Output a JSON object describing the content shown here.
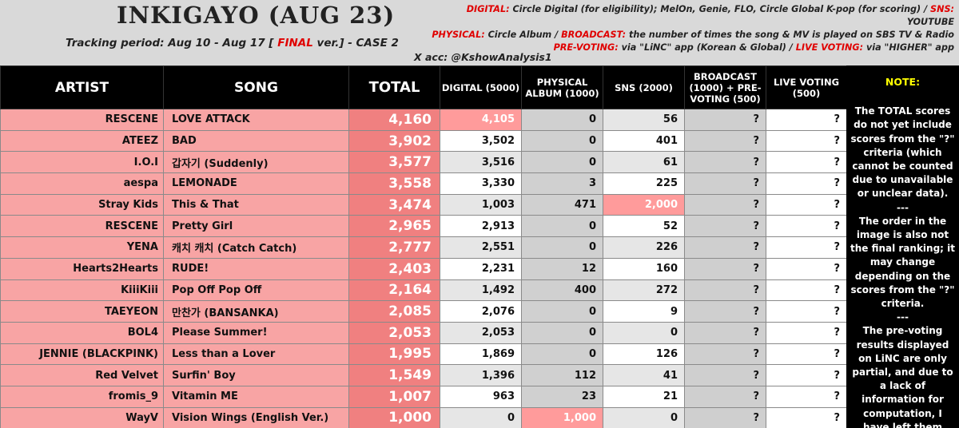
{
  "header": {
    "title": "INKIGAYO (AUG 23)",
    "tracking_prefix": "Tracking period: Aug 10 - Aug 17 [ ",
    "tracking_final": "FINAL",
    "tracking_suffix": " ver.] - CASE 2",
    "x_account": "X acc: @KshowAnalysis1",
    "info": [
      {
        "key": "DIGITAL:",
        "text": " Circle Digital (for eligibility); MelOn, Genie, FLO, Circle Global K-pop (for scoring) / ",
        "key2": "SNS:",
        "text2": " YOUTUBE"
      },
      {
        "key": "PHYSICAL:",
        "text": " Circle Album / ",
        "key2": "BROADCAST:",
        "text2": " the number of times the song & MV is played on SBS TV & Radio"
      },
      {
        "key": "PRE-VOTING:",
        "text": " via \"LiNC\" app (Korean & Global) / ",
        "key2": "LIVE VOTING:",
        "text2": " via \"HIGHER\" app"
      }
    ]
  },
  "columns": {
    "artist": "ARTIST",
    "song": "SONG",
    "total": "TOTAL",
    "digital": "DIGITAL (5000)",
    "physical": "PHYSICAL ALBUM (1000)",
    "sns": "SNS (2000)",
    "broadcast": "BROADCAST (1000) + PRE-VOTING (500)",
    "live": "LIVE VOTING (500)"
  },
  "rows": [
    {
      "artist": "RESCENE",
      "song": "LOVE ATTACK",
      "total": "4,160",
      "digital": "4,105",
      "physical": "0",
      "sns": "56",
      "broadcast": "?",
      "live": "?"
    },
    {
      "artist": "ATEEZ",
      "song": "BAD",
      "total": "3,902",
      "digital": "3,502",
      "physical": "0",
      "sns": "401",
      "broadcast": "?",
      "live": "?"
    },
    {
      "artist": "I.O.I",
      "song": "갑자기 (Suddenly)",
      "total": "3,577",
      "digital": "3,516",
      "physical": "0",
      "sns": "61",
      "broadcast": "?",
      "live": "?"
    },
    {
      "artist": "aespa",
      "song": "LEMONADE",
      "total": "3,558",
      "digital": "3,330",
      "physical": "3",
      "sns": "225",
      "broadcast": "?",
      "live": "?"
    },
    {
      "artist": "Stray Kids",
      "song": "This & That",
      "total": "3,474",
      "digital": "1,003",
      "physical": "471",
      "sns": "2,000",
      "broadcast": "?",
      "live": "?"
    },
    {
      "artist": "RESCENE",
      "song": "Pretty Girl",
      "total": "2,965",
      "digital": "2,913",
      "physical": "0",
      "sns": "52",
      "broadcast": "?",
      "live": "?"
    },
    {
      "artist": "YENA",
      "song": "캐치 캐치 (Catch Catch)",
      "total": "2,777",
      "digital": "2,551",
      "physical": "0",
      "sns": "226",
      "broadcast": "?",
      "live": "?"
    },
    {
      "artist": "Hearts2Hearts",
      "song": "RUDE!",
      "total": "2,403",
      "digital": "2,231",
      "physical": "12",
      "sns": "160",
      "broadcast": "?",
      "live": "?"
    },
    {
      "artist": "KiiiKiii",
      "song": "Pop Off Pop Off",
      "total": "2,164",
      "digital": "1,492",
      "physical": "400",
      "sns": "272",
      "broadcast": "?",
      "live": "?"
    },
    {
      "artist": "TAEYEON",
      "song": "만찬가 (BANSANKA)",
      "total": "2,085",
      "digital": "2,076",
      "physical": "0",
      "sns": "9",
      "broadcast": "?",
      "live": "?"
    },
    {
      "artist": "BOL4",
      "song": "Please Summer!",
      "total": "2,053",
      "digital": "2,053",
      "physical": "0",
      "sns": "0",
      "broadcast": "?",
      "live": "?"
    },
    {
      "artist": "JENNIE (BLACKPINK)",
      "song": "Less than a Lover",
      "total": "1,995",
      "digital": "1,869",
      "physical": "0",
      "sns": "126",
      "broadcast": "?",
      "live": "?"
    },
    {
      "artist": "Red Velvet",
      "song": "Surfin' Boy",
      "total": "1,549",
      "digital": "1,396",
      "physical": "112",
      "sns": "41",
      "broadcast": "?",
      "live": "?"
    },
    {
      "artist": "fromis_9",
      "song": "Vitamin ME",
      "total": "1,007",
      "digital": "963",
      "physical": "23",
      "sns": "21",
      "broadcast": "?",
      "live": "?"
    },
    {
      "artist": "WayV",
      "song": "Vision Wings (English Ver.)",
      "total": "1,000",
      "digital": "0",
      "physical": "1,000",
      "sns": "0",
      "broadcast": "?",
      "live": "?"
    }
  ],
  "highlights": {
    "digital_max_row": 0,
    "sns_max_row": 4,
    "physical_max_row": 14
  },
  "note": {
    "title": "NOTE:",
    "p1": "The TOTAL scores do not yet include scores from the \"?\" criteria (which cannot be counted due to unavailable or unclear data).",
    "sep1": "---",
    "p2": "The order in the image is also not the final ranking; it may change depending on the scores from the \"?\" criteria.",
    "sep2": "---",
    "p3": "The pre-voting results displayed on LiNC are only partial, and due to a lack of information for computation, I have left them blank."
  },
  "colors": {
    "pink": "#f8a4a4",
    "total_red": "#f08080",
    "highlight": "#ff9b9b",
    "accent_red": "#e00000",
    "note_yellow": "#ffff00"
  }
}
